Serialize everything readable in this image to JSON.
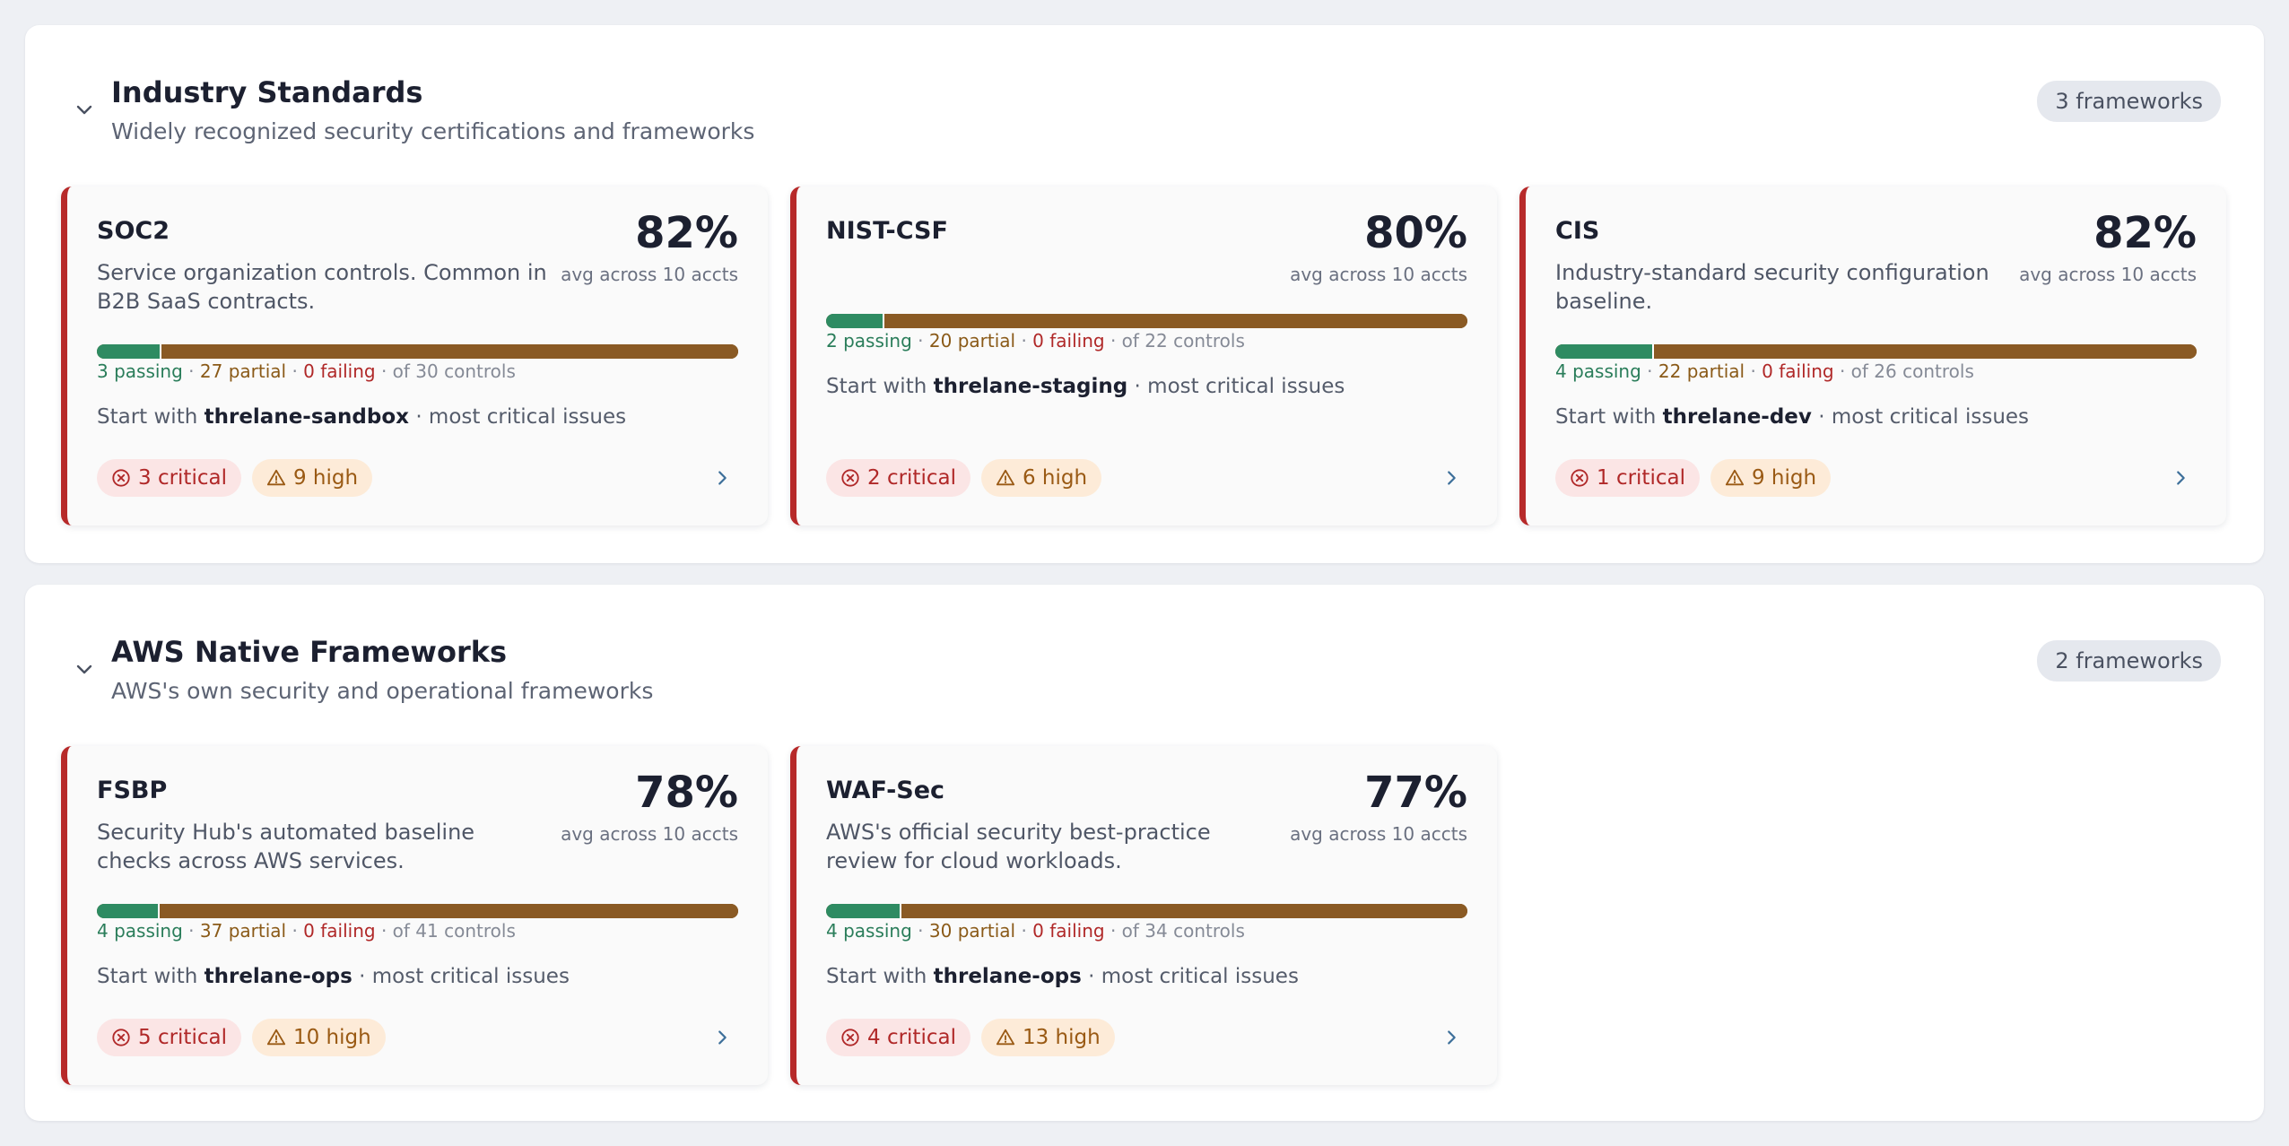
{
  "sections": [
    {
      "title": "Industry Standards",
      "subtitle": "Widely recognized security certifications and frameworks",
      "count_label": "3 frameworks",
      "cards": [
        {
          "name": "SOC2",
          "description": "Service organization controls. Common in B2B SaaS contracts.",
          "percent": "82%",
          "percent_value": 82,
          "avg_label": "avg across 10 accts",
          "passing": 3,
          "partial": 27,
          "failing": 0,
          "total": 30,
          "passing_label": "3 passing",
          "partial_label": "27 partial",
          "failing_label": "0 failing",
          "total_label": "of 30 controls",
          "start_prefix": "Start with",
          "start_account": "threlane-sandbox",
          "start_suffix": "· most critical issues",
          "critical_label": "3 critical",
          "high_label": "9 high"
        },
        {
          "name": "NIST-CSF",
          "description": "",
          "percent": "80%",
          "percent_value": 80,
          "avg_label": "avg across 10 accts",
          "passing": 2,
          "partial": 20,
          "failing": 0,
          "total": 22,
          "passing_label": "2 passing",
          "partial_label": "20 partial",
          "failing_label": "0 failing",
          "total_label": "of 22 controls",
          "start_prefix": "Start with",
          "start_account": "threlane-staging",
          "start_suffix": "· most critical issues",
          "critical_label": "2 critical",
          "high_label": "6 high"
        },
        {
          "name": "CIS",
          "description": "Industry-standard security configuration baseline.",
          "percent": "82%",
          "percent_value": 82,
          "avg_label": "avg across 10 accts",
          "passing": 4,
          "partial": 22,
          "failing": 0,
          "total": 26,
          "passing_label": "4 passing",
          "partial_label": "22 partial",
          "failing_label": "0 failing",
          "total_label": "of 26 controls",
          "start_prefix": "Start with",
          "start_account": "threlane-dev",
          "start_suffix": "· most critical issues",
          "critical_label": "1 critical",
          "high_label": "9 high"
        }
      ]
    },
    {
      "title": "AWS Native Frameworks",
      "subtitle": "AWS's own security and operational frameworks",
      "count_label": "2 frameworks",
      "cards": [
        {
          "name": "FSBP",
          "description": "Security Hub's automated baseline checks across AWS services.",
          "percent": "78%",
          "percent_value": 78,
          "avg_label": "avg across 10 accts",
          "passing": 4,
          "partial": 37,
          "failing": 0,
          "total": 41,
          "passing_label": "4 passing",
          "partial_label": "37 partial",
          "failing_label": "0 failing",
          "total_label": "of 41 controls",
          "start_prefix": "Start with",
          "start_account": "threlane-ops",
          "start_suffix": "· most critical issues",
          "critical_label": "5 critical",
          "high_label": "10 high"
        },
        {
          "name": "WAF-Sec",
          "description": "AWS's official security best-practice review for cloud workloads.",
          "percent": "77%",
          "percent_value": 77,
          "avg_label": "avg across 10 accts",
          "passing": 4,
          "partial": 30,
          "failing": 0,
          "total": 34,
          "passing_label": "4 passing",
          "partial_label": "30 partial",
          "failing_label": "0 failing",
          "total_label": "of 34 controls",
          "start_prefix": "Start with",
          "start_account": "threlane-ops",
          "start_suffix": "· most critical issues",
          "critical_label": "4 critical",
          "high_label": "13 high"
        }
      ]
    }
  ],
  "colors": {
    "card_accent": "#b72a2a",
    "passing": "#2e8b62",
    "partial": "#8a5a24",
    "failing": "#b02828",
    "critical_badge_bg": "#fbe5e5",
    "high_badge_bg": "#fdebd8"
  },
  "icons": {
    "collapse": "chevron-down-icon",
    "critical": "x-circle-icon",
    "high": "warning-triangle-icon",
    "open": "chevron-right-icon"
  }
}
